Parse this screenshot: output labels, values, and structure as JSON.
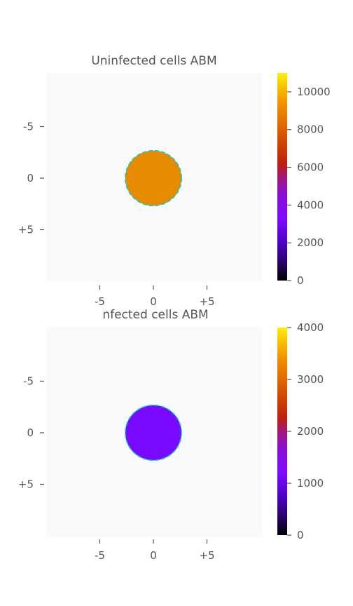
{
  "chart_data": [
    {
      "type": "heatmap",
      "title": "Uninfected cells ABM",
      "xlabel": "",
      "ylabel": "",
      "xticks": [
        "-5",
        "0",
        "+5"
      ],
      "yticks": [
        "-5",
        "0",
        "+5"
      ],
      "x_tick_values": [
        -5,
        0,
        5
      ],
      "y_tick_values": [
        -5,
        0,
        5
      ],
      "xlim": [
        -10,
        10
      ],
      "ylim": [
        -10,
        10
      ],
      "y_inverted": true,
      "grid": false,
      "colormap": "gnuplot-like (black-purple-red-orange-yellow)",
      "colorbar": {
        "ticks": [
          0,
          2000,
          4000,
          6000,
          8000,
          10000
        ],
        "tick_labels": [
          "0",
          "2000",
          "4000",
          "6000",
          "8000",
          "10000"
        ],
        "range": [
          0,
          11000
        ]
      },
      "disk": {
        "center": [
          0,
          0
        ],
        "radius": 2.5,
        "value": 8000,
        "color": "#e68a00",
        "outline": "dashed",
        "outline_color": "#00d2d8"
      }
    },
    {
      "type": "heatmap",
      "title": "nfected cells ABM",
      "xlabel": "",
      "ylabel": "",
      "xticks": [
        "-5",
        "0",
        "+5"
      ],
      "yticks": [
        "-5",
        "0",
        "+5"
      ],
      "x_tick_values": [
        -5,
        0,
        5
      ],
      "y_tick_values": [
        -5,
        0,
        5
      ],
      "xlim": [
        -10,
        10
      ],
      "ylim": [
        -10,
        10
      ],
      "y_inverted": true,
      "grid": false,
      "colormap": "gnuplot-like (black-purple-red-orange-yellow)",
      "colorbar": {
        "ticks": [
          0,
          1000,
          2000,
          3000,
          4000
        ],
        "tick_labels": [
          "0",
          "1000",
          "2000",
          "3000",
          "4000"
        ],
        "range": [
          0,
          4000
        ]
      },
      "disk": {
        "center": [
          0,
          0
        ],
        "radius": 2.5,
        "value": 1000,
        "color": "#7a0aff",
        "outline": "dashed",
        "outline_color": "#00d2d8"
      }
    }
  ]
}
